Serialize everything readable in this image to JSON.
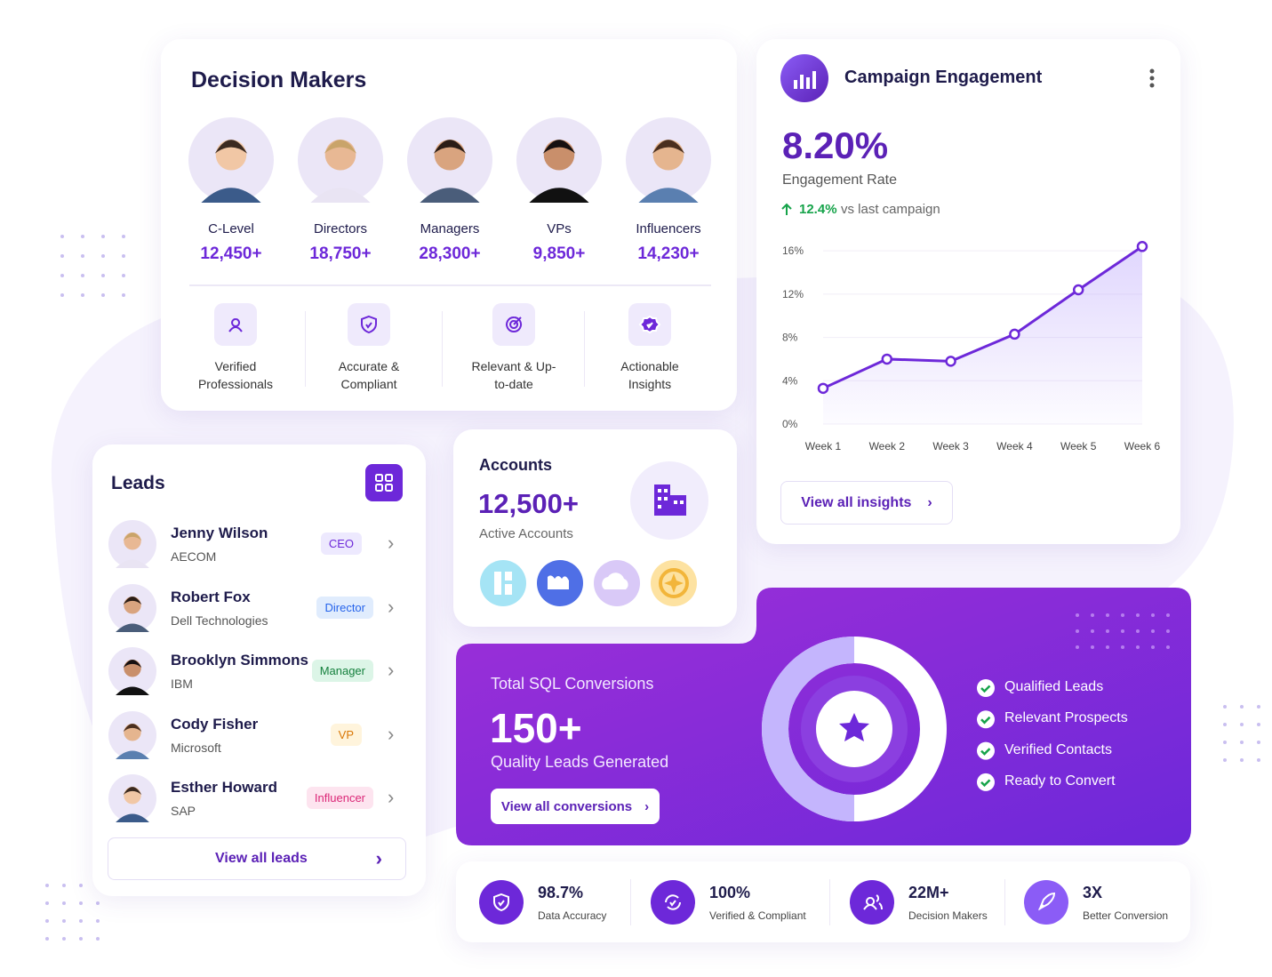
{
  "decision_makers": {
    "title": "Decision Makers",
    "groups": [
      {
        "label": "C-Level",
        "count": "12,450+"
      },
      {
        "label": "Directors",
        "count": "18,750+"
      },
      {
        "label": "Managers",
        "count": "28,300+"
      },
      {
        "label": "VPs",
        "count": "9,850+"
      },
      {
        "label": "Influencers",
        "count": "14,230+"
      }
    ],
    "features": [
      "Verified Professionals",
      "Accurate & Compliant",
      "Relevant & Up-to-date",
      "Actionable Insights"
    ]
  },
  "campaign": {
    "title": "Campaign Engagement",
    "rate": "8.20%",
    "rate_label": "Engagement Rate",
    "change": "12.4%",
    "change_label": "vs last campaign",
    "button": "View all insights",
    "chart": {
      "type": "line",
      "categories": [
        "Week 1",
        "Week 2",
        "Week 3",
        "Week 4",
        "Week 5",
        "Week 6"
      ],
      "values": [
        3.3,
        6.0,
        5.8,
        8.3,
        12.4,
        16.4
      ],
      "color": "#6d28d9",
      "ylim": [
        0,
        17
      ],
      "yticks": [
        {
          "value": 0,
          "label": "0%"
        },
        {
          "value": 4,
          "label": "4%"
        },
        {
          "value": 8,
          "label": "8%"
        },
        {
          "value": 12,
          "label": "12%"
        },
        {
          "value": 16,
          "label": "16%"
        }
      ],
      "grid": true
    }
  },
  "leads": {
    "title": "Leads",
    "items": [
      {
        "name": "Jenny Wilson",
        "company": "AECOM",
        "role": "CEO"
      },
      {
        "name": "Robert Fox",
        "company": "Dell Technologies",
        "role": "Director"
      },
      {
        "name": "Brooklyn Simmons",
        "company": "IBM",
        "role": "Manager"
      },
      {
        "name": "Cody Fisher",
        "company": "Microsoft",
        "role": "VP"
      },
      {
        "name": "Esther Howard",
        "company": "SAP",
        "role": "Influencer"
      }
    ],
    "button": "View all leads"
  },
  "accounts": {
    "title": "Accounts",
    "value": "12,500+",
    "label": "Active Accounts"
  },
  "sql": {
    "title": "Total SQL Conversions",
    "value": "150+",
    "subtitle": "Quality Leads Generated",
    "button": "View all conversions",
    "checklist": [
      "Qualified Leads",
      "Relevant Prospects",
      "Verified Contacts",
      "Ready to Convert"
    ]
  },
  "stats": [
    {
      "value": "98.7%",
      "label": "Data Accuracy"
    },
    {
      "value": "100%",
      "label": "Verified & Compliant"
    },
    {
      "value": "22M+",
      "label": "Decision Makers"
    },
    {
      "value": "3X",
      "label": "Better Conversion"
    }
  ]
}
